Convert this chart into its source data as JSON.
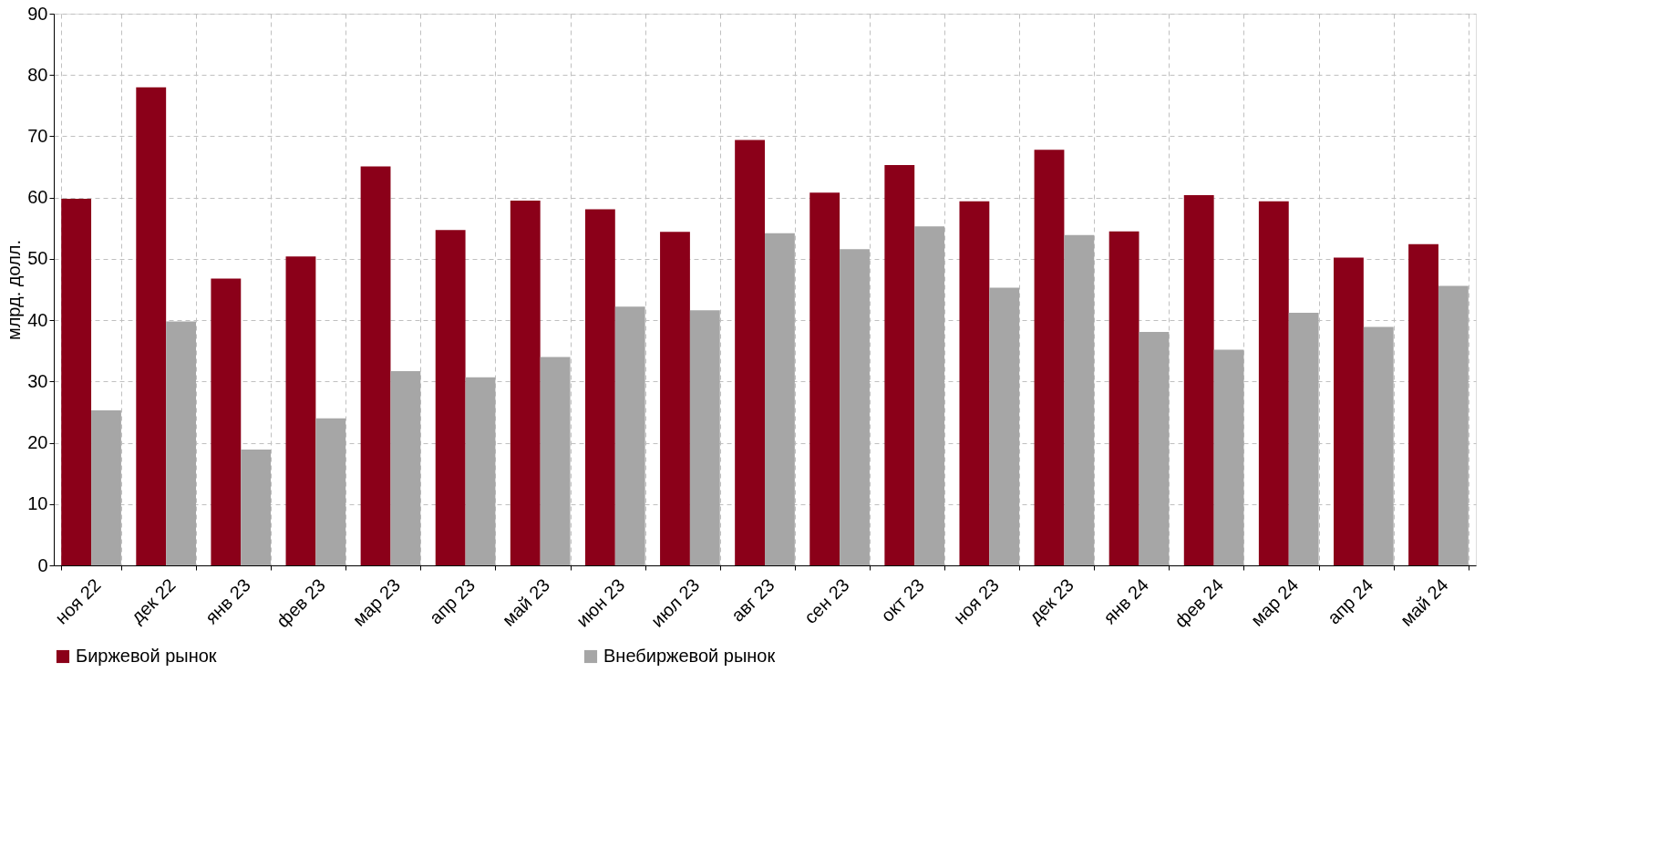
{
  "chart_data": {
    "type": "bar",
    "ylabel": "млрд. долл.",
    "categories": [
      "ноя 22",
      "дек 22",
      "янв 23",
      "фев 23",
      "мар 23",
      "апр 23",
      "май 23",
      "июн 23",
      "июл 23",
      "авг 23",
      "сен 23",
      "окт 23",
      "ноя 23",
      "дек 23",
      "янв 24",
      "фев 24",
      "мар 24",
      "апр 24",
      "май 24"
    ],
    "series": [
      {
        "name": "Биржевой рынок",
        "color": "#8b0019",
        "values": [
          59.8,
          78.0,
          46.8,
          50.4,
          65.1,
          54.7,
          59.5,
          58.1,
          54.4,
          69.4,
          60.8,
          65.3,
          59.4,
          67.8,
          54.5,
          60.4,
          59.4,
          50.2,
          52.4
        ]
      },
      {
        "name": "Внебиржевой рынок",
        "color": "#a6a6a6",
        "values": [
          25.3,
          39.8,
          18.9,
          24.0,
          31.7,
          30.7,
          34.0,
          42.2,
          41.6,
          54.2,
          51.6,
          55.3,
          45.3,
          53.9,
          38.1,
          35.2,
          41.2,
          38.9,
          45.6
        ]
      }
    ],
    "ylim": [
      0,
      90
    ],
    "yticks": [
      0,
      10,
      20,
      30,
      40,
      50,
      60,
      70,
      80,
      90
    ],
    "grid": true,
    "legend": "bottom"
  }
}
